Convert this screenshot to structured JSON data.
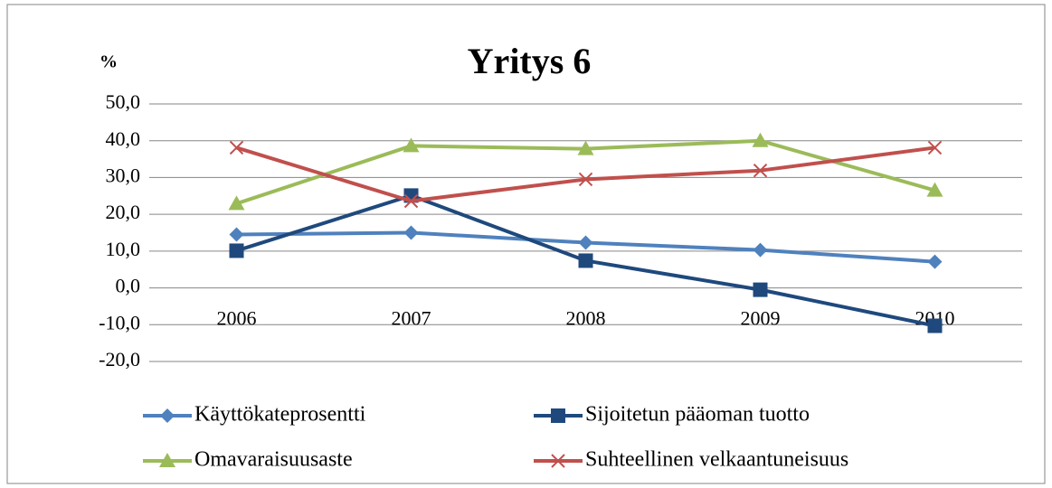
{
  "chart_data": {
    "type": "line",
    "title": "Yritys 6",
    "y_label": "%",
    "categories": [
      "2006",
      "2007",
      "2008",
      "2009",
      "2010"
    ],
    "series": [
      {
        "name": "Käyttökateprosentti",
        "color": "#4f81bd",
        "marker": "diamond",
        "values": [
          14.5,
          15.0,
          12.3,
          10.3,
          7.1
        ]
      },
      {
        "name": "Sijoitetun pääoman tuotto",
        "color": "#1f497d",
        "marker": "square",
        "values": [
          10.1,
          25.1,
          7.4,
          -0.5,
          -10.3
        ]
      },
      {
        "name": "Omavaraisuusaste",
        "color": "#9bbb59",
        "marker": "triangle",
        "values": [
          22.9,
          38.6,
          37.8,
          40.0,
          26.5
        ]
      },
      {
        "name": "Suhteellinen velkaantuneisuus",
        "color": "#c0504d",
        "marker": "x",
        "values": [
          38.1,
          23.6,
          29.5,
          31.9,
          38.1
        ]
      }
    ],
    "ylim": [
      -20,
      50
    ],
    "yticks": [
      {
        "value": -20,
        "label": "-20,0"
      },
      {
        "value": -10,
        "label": "-10,0"
      },
      {
        "value": 0,
        "label": "0,0"
      },
      {
        "value": 10,
        "label": "10,0"
      },
      {
        "value": 20,
        "label": "20,0"
      },
      {
        "value": 30,
        "label": "30,0"
      },
      {
        "value": 40,
        "label": "40,0"
      },
      {
        "value": 50,
        "label": "50,0"
      }
    ],
    "grid": true,
    "legend": "bottom"
  }
}
